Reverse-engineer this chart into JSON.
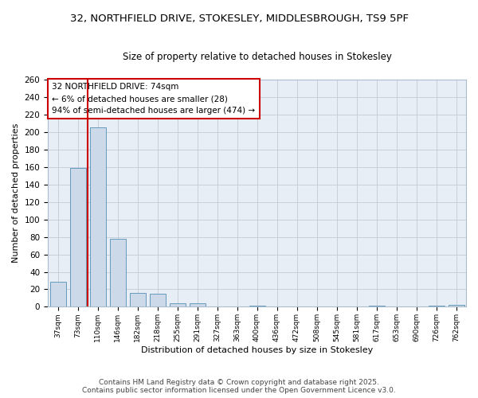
{
  "title_line1": "32, NORTHFIELD DRIVE, STOKESLEY, MIDDLESBROUGH, TS9 5PF",
  "title_line2": "Size of property relative to detached houses in Stokesley",
  "xlabel": "Distribution of detached houses by size in Stokesley",
  "ylabel": "Number of detached properties",
  "categories": [
    "37sqm",
    "73sqm",
    "110sqm",
    "146sqm",
    "182sqm",
    "218sqm",
    "255sqm",
    "291sqm",
    "327sqm",
    "363sqm",
    "400sqm",
    "436sqm",
    "472sqm",
    "508sqm",
    "545sqm",
    "581sqm",
    "617sqm",
    "653sqm",
    "690sqm",
    "726sqm",
    "762sqm"
  ],
  "values": [
    29,
    159,
    205,
    78,
    16,
    15,
    4,
    4,
    0,
    0,
    1,
    0,
    0,
    0,
    0,
    0,
    1,
    0,
    0,
    1,
    2
  ],
  "bar_color": "#ccd9e8",
  "bar_edge_color": "#6699bb",
  "ylim": [
    0,
    260
  ],
  "yticks": [
    0,
    20,
    40,
    60,
    80,
    100,
    120,
    140,
    160,
    180,
    200,
    220,
    240,
    260
  ],
  "vline_x": 1.5,
  "vline_color": "#cc0000",
  "annotation_title": "32 NORTHFIELD DRIVE: 74sqm",
  "annotation_line1": "← 6% of detached houses are smaller (28)",
  "annotation_line2": "94% of semi-detached houses are larger (474) →",
  "annotation_box_color": "#cc0000",
  "footer_line1": "Contains HM Land Registry data © Crown copyright and database right 2025.",
  "footer_line2": "Contains public sector information licensed under the Open Government Licence v3.0.",
  "bg_color": "#ffffff",
  "plot_bg_color": "#e8eef5",
  "grid_color": "#c0ccd8"
}
